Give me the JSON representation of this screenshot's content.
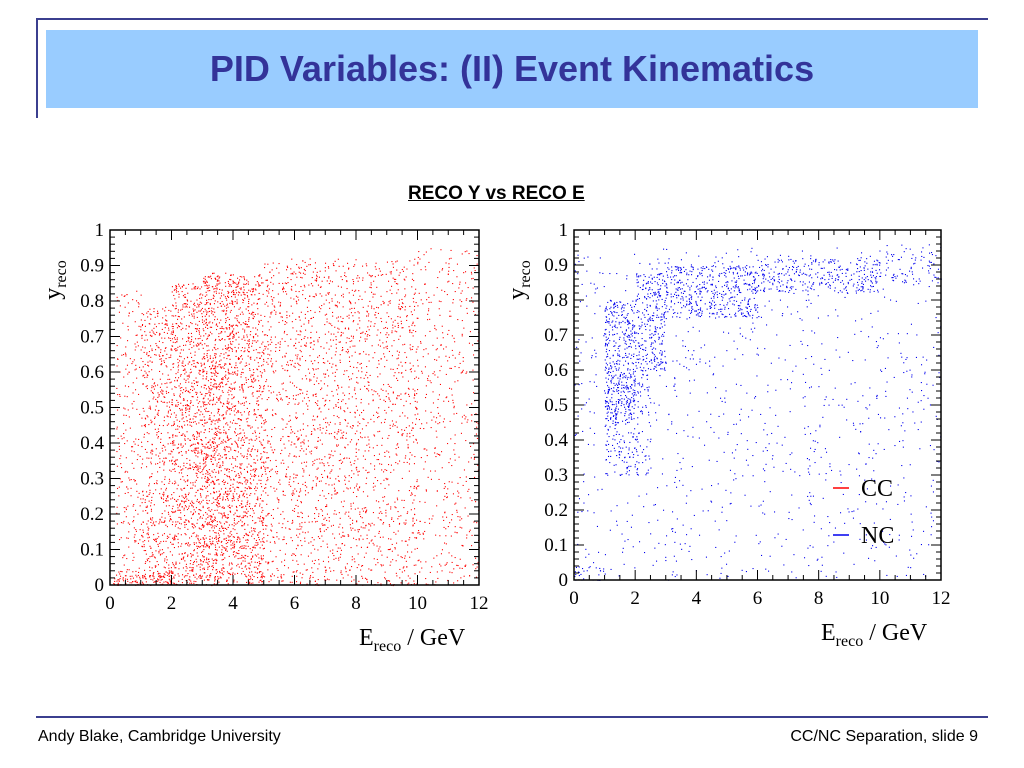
{
  "slide": {
    "title": "PID Variables: (II) Event Kinematics",
    "section_title": "RECO Y vs RECO E",
    "footer_left": "Andy Blake, Cambridge University",
    "footer_right": "CC/NC Separation, slide 9"
  },
  "colors": {
    "title_bg": "#99ccff",
    "title_text": "#333399",
    "rule": "#3b3f8f",
    "cc": "#ff0000",
    "nc": "#0000ee"
  },
  "chart_data": [
    {
      "type": "scatter",
      "series": [
        {
          "name": "CC",
          "color": "#ff0000"
        }
      ],
      "x_label_main": "E",
      "x_label_sub": "reco",
      "x_label_unit": " / GeV",
      "y_label_main": "y",
      "y_label_sub": "reco",
      "xlim": [
        0,
        12
      ],
      "ylim": [
        0,
        1
      ],
      "x_ticks": [
        0,
        2,
        4,
        6,
        8,
        10,
        12
      ],
      "y_ticks": [
        0,
        0.1,
        0.2,
        0.3,
        0.4,
        0.5,
        0.6,
        0.7,
        0.8,
        0.9,
        1
      ],
      "x_tick_labels": [
        "0",
        "2",
        "4",
        "6",
        "8",
        "10",
        "12"
      ],
      "y_tick_labels": [
        "0",
        "0.1",
        "0.2",
        "0.3",
        "0.4",
        "0.5",
        "0.6",
        "0.7",
        "0.8",
        "0.9",
        "1"
      ],
      "density_regions": [
        {
          "x": [
            0.2,
            1.0
          ],
          "y": [
            0.0,
            0.83
          ],
          "density": 0.25
        },
        {
          "x": [
            1.0,
            2.0
          ],
          "y": [
            0.0,
            0.79
          ],
          "density": 0.55
        },
        {
          "x": [
            2.0,
            3.0
          ],
          "y": [
            0.0,
            0.85
          ],
          "density": 0.8
        },
        {
          "x": [
            3.0,
            4.0
          ],
          "y": [
            0.0,
            0.88
          ],
          "density": 1.0
        },
        {
          "x": [
            4.0,
            5.0
          ],
          "y": [
            0.0,
            0.88
          ],
          "density": 0.75
        },
        {
          "x": [
            5.0,
            10.0
          ],
          "y": [
            0.0,
            0.92
          ],
          "density": 0.35
        },
        {
          "x": [
            10.0,
            12.0
          ],
          "y": [
            0.0,
            0.95
          ],
          "density": 0.18
        },
        {
          "x": [
            0.1,
            2.0
          ],
          "y": [
            0.0,
            0.04
          ],
          "density": 0.9
        }
      ]
    },
    {
      "type": "scatter",
      "series": [
        {
          "name": "CC",
          "color": "#ff0000"
        },
        {
          "name": "NC",
          "color": "#0000ee"
        }
      ],
      "x_label_main": "E",
      "x_label_sub": "reco",
      "x_label_unit": " / GeV",
      "y_label_main": "y",
      "y_label_sub": "reco",
      "xlim": [
        0,
        12
      ],
      "ylim": [
        0,
        1
      ],
      "x_ticks": [
        0,
        2,
        4,
        6,
        8,
        10,
        12
      ],
      "y_ticks": [
        0,
        0.1,
        0.2,
        0.3,
        0.4,
        0.5,
        0.6,
        0.7,
        0.8,
        0.9,
        1
      ],
      "x_tick_labels": [
        "0",
        "2",
        "4",
        "6",
        "8",
        "10",
        "12"
      ],
      "y_tick_labels": [
        "0",
        "0.1",
        "0.2",
        "0.3",
        "0.4",
        "0.5",
        "0.6",
        "0.7",
        "0.8",
        "0.9",
        "1"
      ],
      "legend": {
        "position": "bottom-right",
        "entries": [
          "CC",
          "NC"
        ]
      },
      "density_regions": [
        {
          "x": [
            0.0,
            12.0
          ],
          "y": [
            0.0,
            0.95
          ],
          "density": 0.08
        },
        {
          "x": [
            1.0,
            2.0
          ],
          "y": [
            0.45,
            0.8
          ],
          "density": 1.0
        },
        {
          "x": [
            2.0,
            3.0
          ],
          "y": [
            0.6,
            0.88
          ],
          "density": 0.95
        },
        {
          "x": [
            3.0,
            6.0
          ],
          "y": [
            0.75,
            0.9
          ],
          "density": 0.9
        },
        {
          "x": [
            6.0,
            10.0
          ],
          "y": [
            0.82,
            0.92
          ],
          "density": 0.7
        },
        {
          "x": [
            10.0,
            12.0
          ],
          "y": [
            0.85,
            0.96
          ],
          "density": 0.3
        },
        {
          "x": [
            0.0,
            1.0
          ],
          "y": [
            0.0,
            0.04
          ],
          "density": 0.6
        },
        {
          "x": [
            1.0,
            2.5
          ],
          "y": [
            0.3,
            0.6
          ],
          "density": 0.45
        }
      ]
    }
  ]
}
